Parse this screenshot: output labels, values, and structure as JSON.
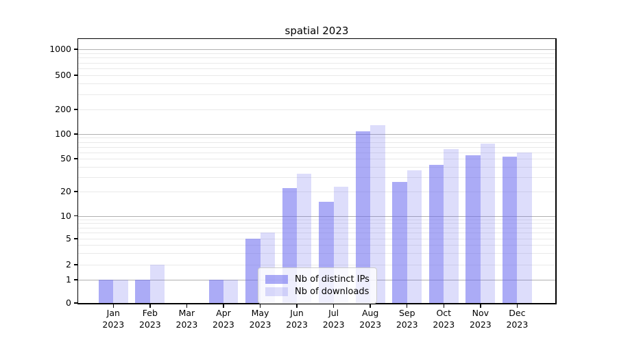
{
  "title": "spatial 2023",
  "colors": {
    "bar_dark": "rgba(102,102,238,0.55)",
    "bar_light": "rgba(102,102,238,0.22)",
    "grid_major": "#b0b0b0",
    "grid_minor": "#e9e9e9",
    "axis": "#000000",
    "legend_border": "#cccccc"
  },
  "legend": {
    "items": [
      {
        "label": "Nb of distinct IPs",
        "swatch": "dark"
      },
      {
        "label": "Nb of downloads",
        "swatch": "light"
      }
    ]
  },
  "chart_data": {
    "type": "bar",
    "title": "spatial 2023",
    "categories": [
      "Jan 2023",
      "Feb 2023",
      "Mar 2023",
      "Apr 2023",
      "May 2023",
      "Jun 2023",
      "Jul 2023",
      "Aug 2023",
      "Sep 2023",
      "Oct 2023",
      "Nov 2023",
      "Dec 2023"
    ],
    "series": [
      {
        "name": "Nb of distinct IPs",
        "values": [
          1,
          1,
          0,
          1,
          5,
          22,
          15,
          107,
          26,
          42,
          55,
          53
        ]
      },
      {
        "name": "Nb of downloads",
        "values": [
          1,
          2,
          0,
          1,
          6,
          33,
          23,
          128,
          36,
          65,
          77,
          60
        ]
      }
    ],
    "xlabel": "",
    "ylabel": "",
    "yscale": "log-like with linear 0-1 segment",
    "yticks": [
      0,
      1,
      2,
      5,
      10,
      20,
      50,
      100,
      200,
      500,
      1000
    ],
    "ylim": [
      0,
      1400
    ],
    "grid": true,
    "legend_position": "lower center"
  }
}
